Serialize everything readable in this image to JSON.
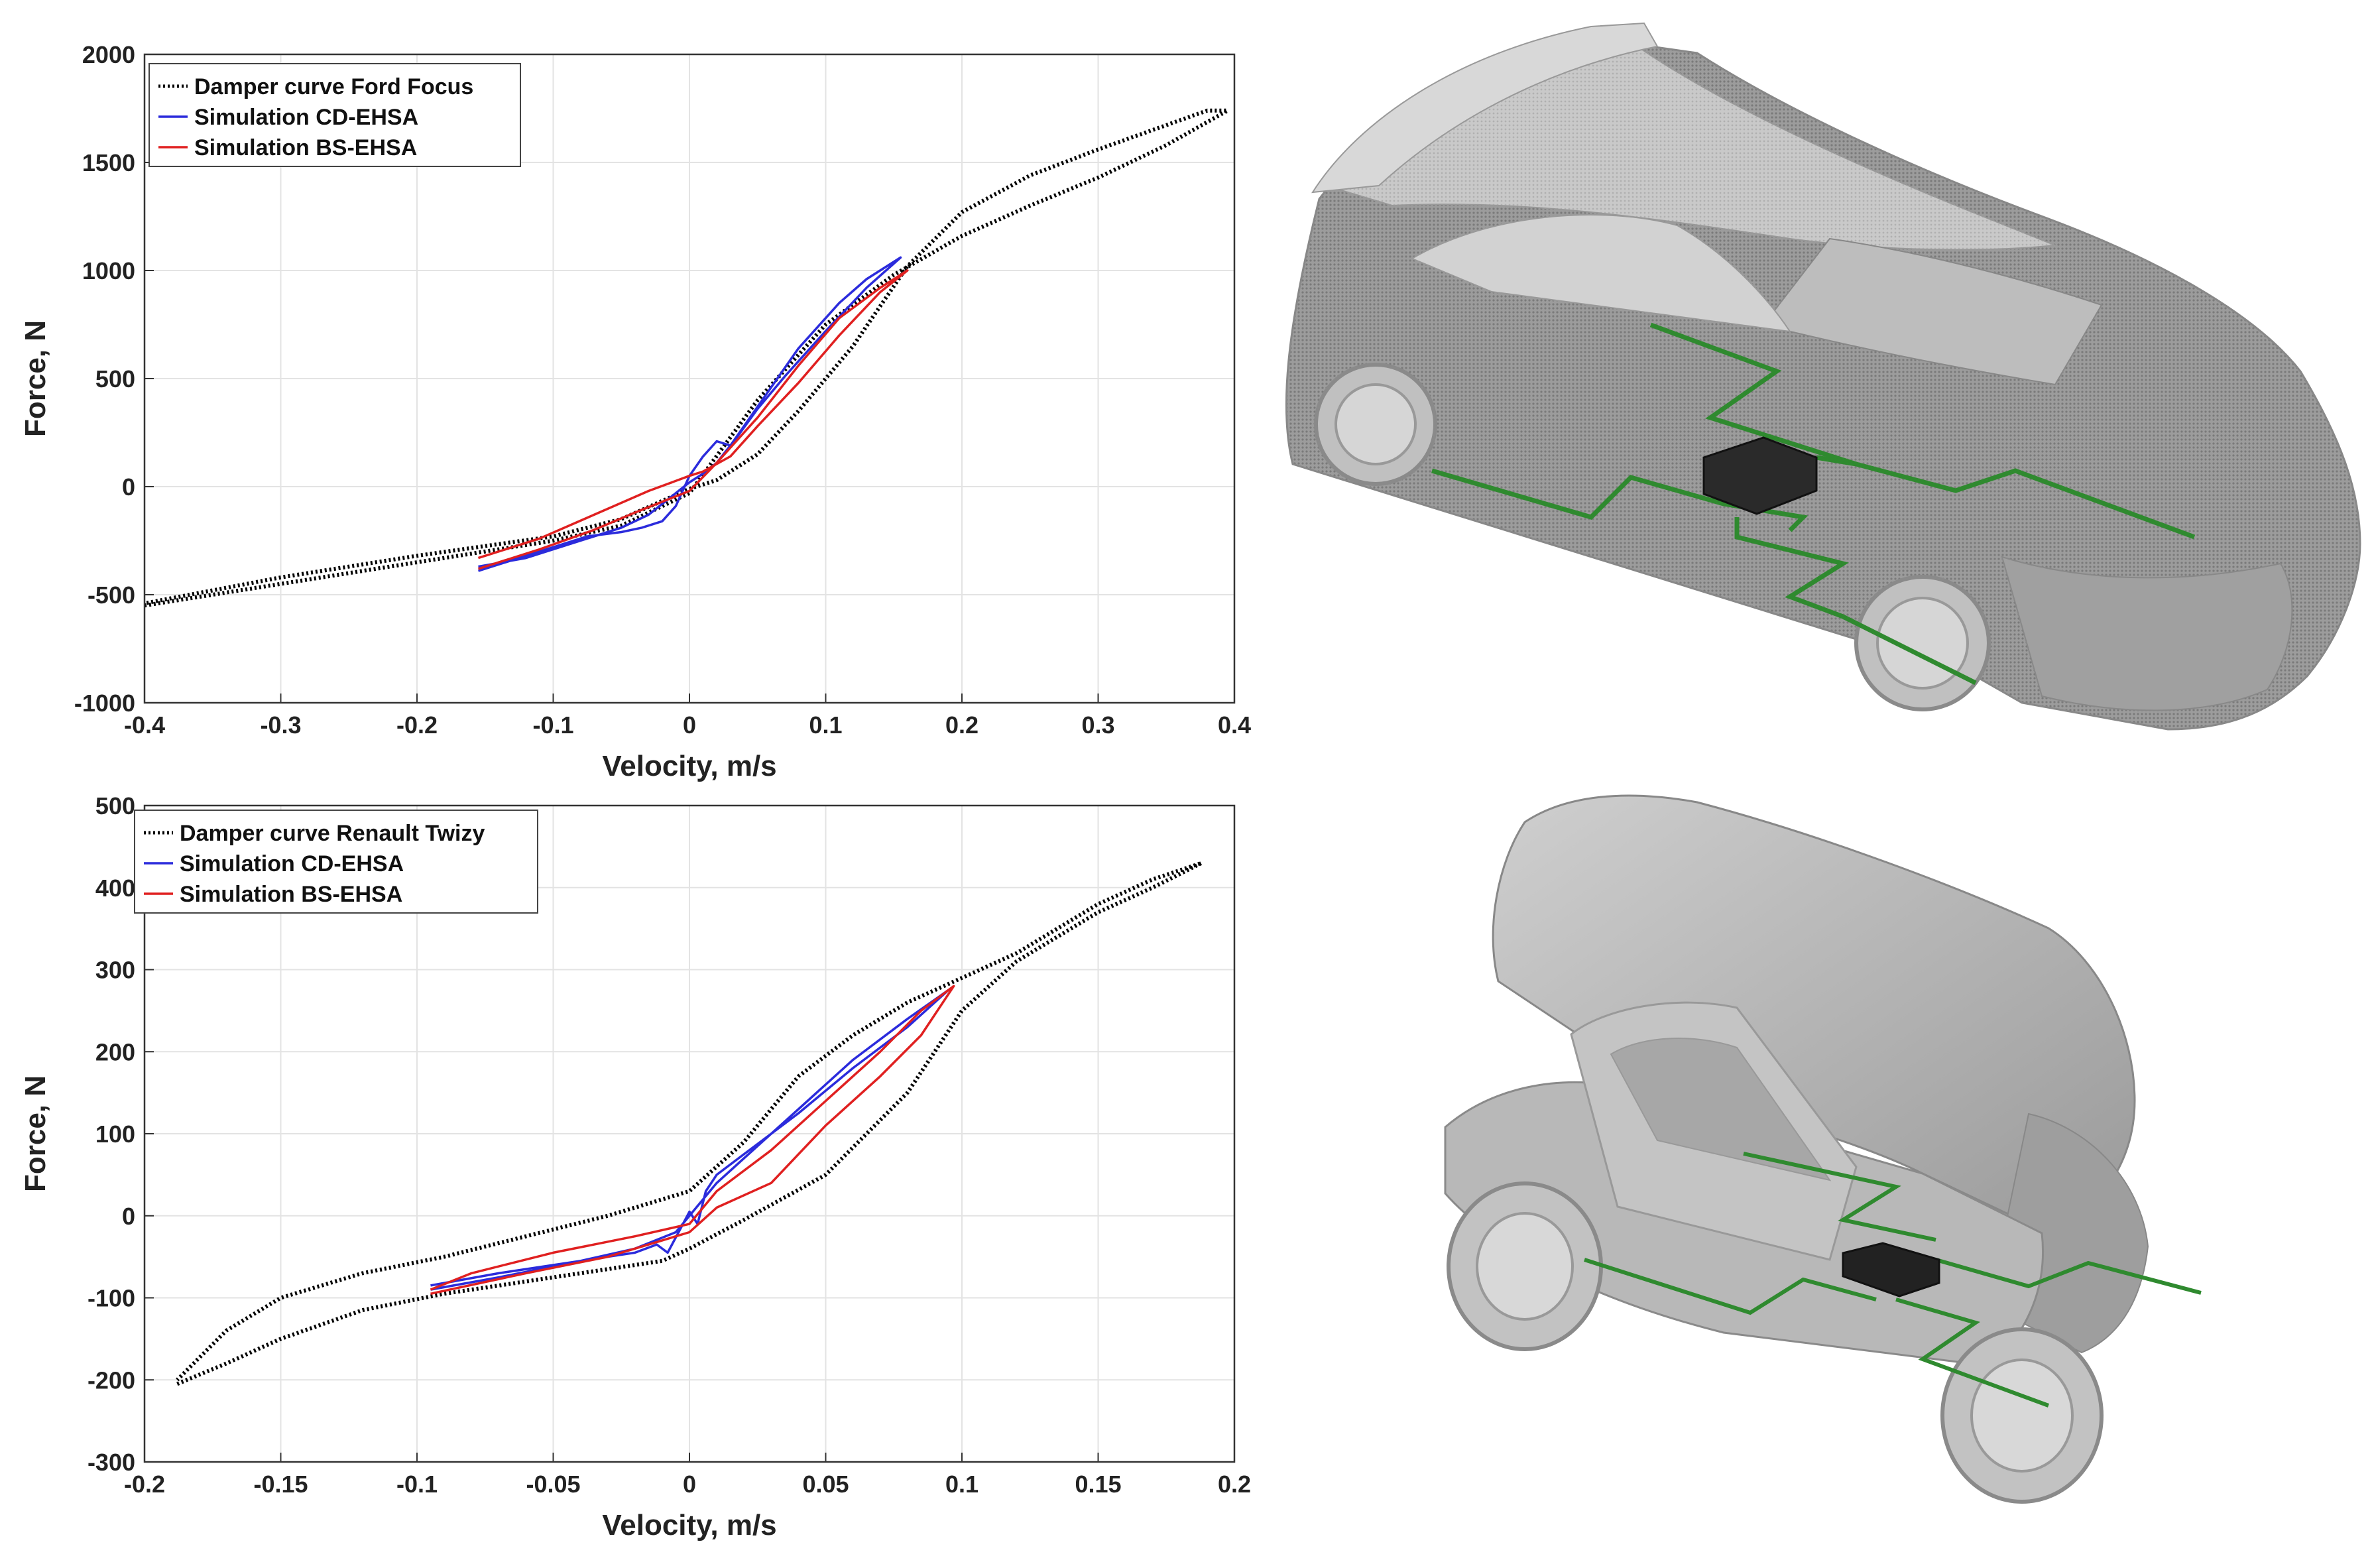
{
  "chart_data": [
    {
      "type": "line",
      "title": "",
      "xlabel": "Velocity, m/s",
      "ylabel": "Force, N",
      "xlim": [
        -0.4,
        0.4
      ],
      "ylim": [
        -1000,
        2000
      ],
      "xticks": [
        -0.4,
        -0.3,
        -0.2,
        -0.1,
        0,
        0.1,
        0.2,
        0.3,
        0.4
      ],
      "xtick_labels": [
        "-0.4",
        "-0.3",
        "-0.2",
        "-0.1",
        "0",
        "0.1",
        "0.2",
        "0.3",
        "0.4"
      ],
      "yticks": [
        -1000,
        -500,
        0,
        500,
        1000,
        1500,
        2000
      ],
      "ytick_labels": [
        "-1000",
        "-500",
        "0",
        "500",
        "1000",
        "1500",
        "2000"
      ],
      "grid": true,
      "legend_position": "top-left",
      "series": [
        {
          "name": "Damper curve Ford Focus",
          "color": "#000000",
          "style": "dotted",
          "x": [
            -0.4,
            -0.3,
            -0.2,
            -0.1,
            -0.05,
            0.0,
            0.05,
            0.1,
            0.15,
            0.2,
            0.25,
            0.3,
            0.35,
            0.395,
            0.38,
            0.3,
            0.25,
            0.2,
            0.16,
            0.12,
            0.08,
            0.05,
            0.02,
            0.0,
            -0.05,
            -0.1,
            -0.2,
            -0.3,
            -0.4
          ],
          "y": [
            -550,
            -450,
            -350,
            -250,
            -180,
            -30,
            400,
            750,
            980,
            1160,
            1300,
            1430,
            1580,
            1740,
            1740,
            1560,
            1440,
            1270,
            1020,
            650,
            350,
            150,
            30,
            -10,
            -150,
            -230,
            -320,
            -420,
            -540
          ]
        },
        {
          "name": "Simulation CD-EHSA",
          "color": "#2b2bdc",
          "style": "solid",
          "x": [
            -0.155,
            -0.11,
            -0.075,
            -0.05,
            -0.035,
            -0.02,
            -0.01,
            0.0,
            0.01,
            0.02,
            0.03,
            0.05,
            0.08,
            0.11,
            0.13,
            0.155,
            0.13,
            0.1,
            0.07,
            0.05,
            0.035,
            0.02,
            0.01,
            0.0,
            -0.01,
            -0.03,
            -0.05,
            -0.08,
            -0.12,
            -0.155
          ],
          "y": [
            -390,
            -300,
            -230,
            -210,
            -190,
            -160,
            -90,
            50,
            140,
            210,
            190,
            370,
            640,
            850,
            960,
            1060,
            920,
            720,
            510,
            360,
            230,
            110,
            60,
            20,
            -30,
            -130,
            -190,
            -250,
            -330,
            -370
          ]
        },
        {
          "name": "Simulation BS-EHSA",
          "color": "#e02020",
          "style": "solid",
          "x": [
            -0.155,
            -0.11,
            -0.07,
            -0.04,
            -0.02,
            0.0,
            0.02,
            0.05,
            0.08,
            0.11,
            0.14,
            0.16,
            0.14,
            0.11,
            0.08,
            0.05,
            0.03,
            0.01,
            0.0,
            -0.03,
            -0.07,
            -0.11,
            -0.155
          ],
          "y": [
            -380,
            -290,
            -200,
            -120,
            -70,
            -20,
            110,
            320,
            560,
            780,
            920,
            1000,
            900,
            700,
            480,
            280,
            140,
            70,
            50,
            -20,
            -130,
            -240,
            -330
          ]
        }
      ]
    },
    {
      "type": "line",
      "title": "",
      "xlabel": "Velocity, m/s",
      "ylabel": "Force, N",
      "xlim": [
        -0.2,
        0.2
      ],
      "ylim": [
        -300,
        500
      ],
      "xticks": [
        -0.2,
        -0.15,
        -0.1,
        -0.05,
        0,
        0.05,
        0.1,
        0.15,
        0.2
      ],
      "xtick_labels": [
        "-0.2",
        "-0.15",
        "-0.1",
        "-0.05",
        "0",
        "0.05",
        "0.1",
        "0.15",
        "0.2"
      ],
      "yticks": [
        -300,
        -200,
        -100,
        0,
        100,
        200,
        300,
        400,
        500
      ],
      "ytick_labels": [
        "-300",
        "-200",
        "-100",
        "0",
        "100",
        "200",
        "300",
        "400",
        "500"
      ],
      "grid": true,
      "legend_position": "top-left",
      "series": [
        {
          "name": "Damper curve Renault Twizy",
          "color": "#000000",
          "style": "dotted",
          "x": [
            -0.188,
            -0.17,
            -0.15,
            -0.12,
            -0.09,
            -0.06,
            -0.03,
            -0.01,
            0.0,
            0.02,
            0.05,
            0.08,
            0.1,
            0.12,
            0.15,
            0.17,
            0.188,
            0.17,
            0.15,
            0.12,
            0.1,
            0.08,
            0.06,
            0.04,
            0.02,
            0.0,
            -0.01,
            -0.03,
            -0.06,
            -0.09,
            -0.12,
            -0.15,
            -0.17,
            -0.188
          ],
          "y": [
            -205,
            -180,
            -150,
            -115,
            -95,
            -80,
            -65,
            -55,
            -40,
            -5,
            50,
            150,
            250,
            310,
            370,
            400,
            430,
            410,
            380,
            320,
            290,
            260,
            220,
            170,
            90,
            30,
            20,
            0,
            -25,
            -50,
            -70,
            -100,
            -140,
            -200
          ]
        },
        {
          "name": "Simulation CD-EHSA",
          "color": "#2b2bdc",
          "style": "solid",
          "x": [
            -0.095,
            -0.07,
            -0.04,
            -0.02,
            -0.012,
            -0.008,
            -0.004,
            0.0,
            0.003,
            0.006,
            0.01,
            0.02,
            0.04,
            0.06,
            0.08,
            0.095,
            0.08,
            0.06,
            0.04,
            0.02,
            0.01,
            0.005,
            0.0,
            -0.005,
            -0.02,
            -0.04,
            -0.07,
            -0.095
          ],
          "y": [
            -90,
            -75,
            -55,
            -45,
            -35,
            -45,
            -20,
            5,
            -10,
            30,
            50,
            75,
            125,
            180,
            230,
            275,
            240,
            190,
            130,
            70,
            40,
            20,
            0,
            -20,
            -40,
            -55,
            -70,
            -85
          ]
        },
        {
          "name": "Simulation BS-EHSA",
          "color": "#e02020",
          "style": "solid",
          "x": [
            -0.095,
            -0.06,
            -0.03,
            -0.01,
            0.0,
            0.01,
            0.03,
            0.05,
            0.07,
            0.085,
            0.097,
            0.085,
            0.07,
            0.05,
            0.03,
            0.01,
            0.0,
            -0.02,
            -0.05,
            -0.08,
            -0.095
          ],
          "y": [
            -95,
            -70,
            -50,
            -30,
            -20,
            10,
            40,
            110,
            170,
            220,
            280,
            250,
            200,
            140,
            80,
            30,
            -10,
            -25,
            -45,
            -70,
            -90
          ]
        }
      ]
    }
  ],
  "images": [
    {
      "subject": "hatchback-car-render",
      "body_color": "#a9a9a9",
      "wiring_color": "#2f8a2f",
      "box_color": "#2a2a2a"
    },
    {
      "subject": "renault-twizy-render",
      "body_color": "#b3b3b3",
      "wiring_color": "#2f8a2f",
      "box_color": "#222222"
    }
  ]
}
